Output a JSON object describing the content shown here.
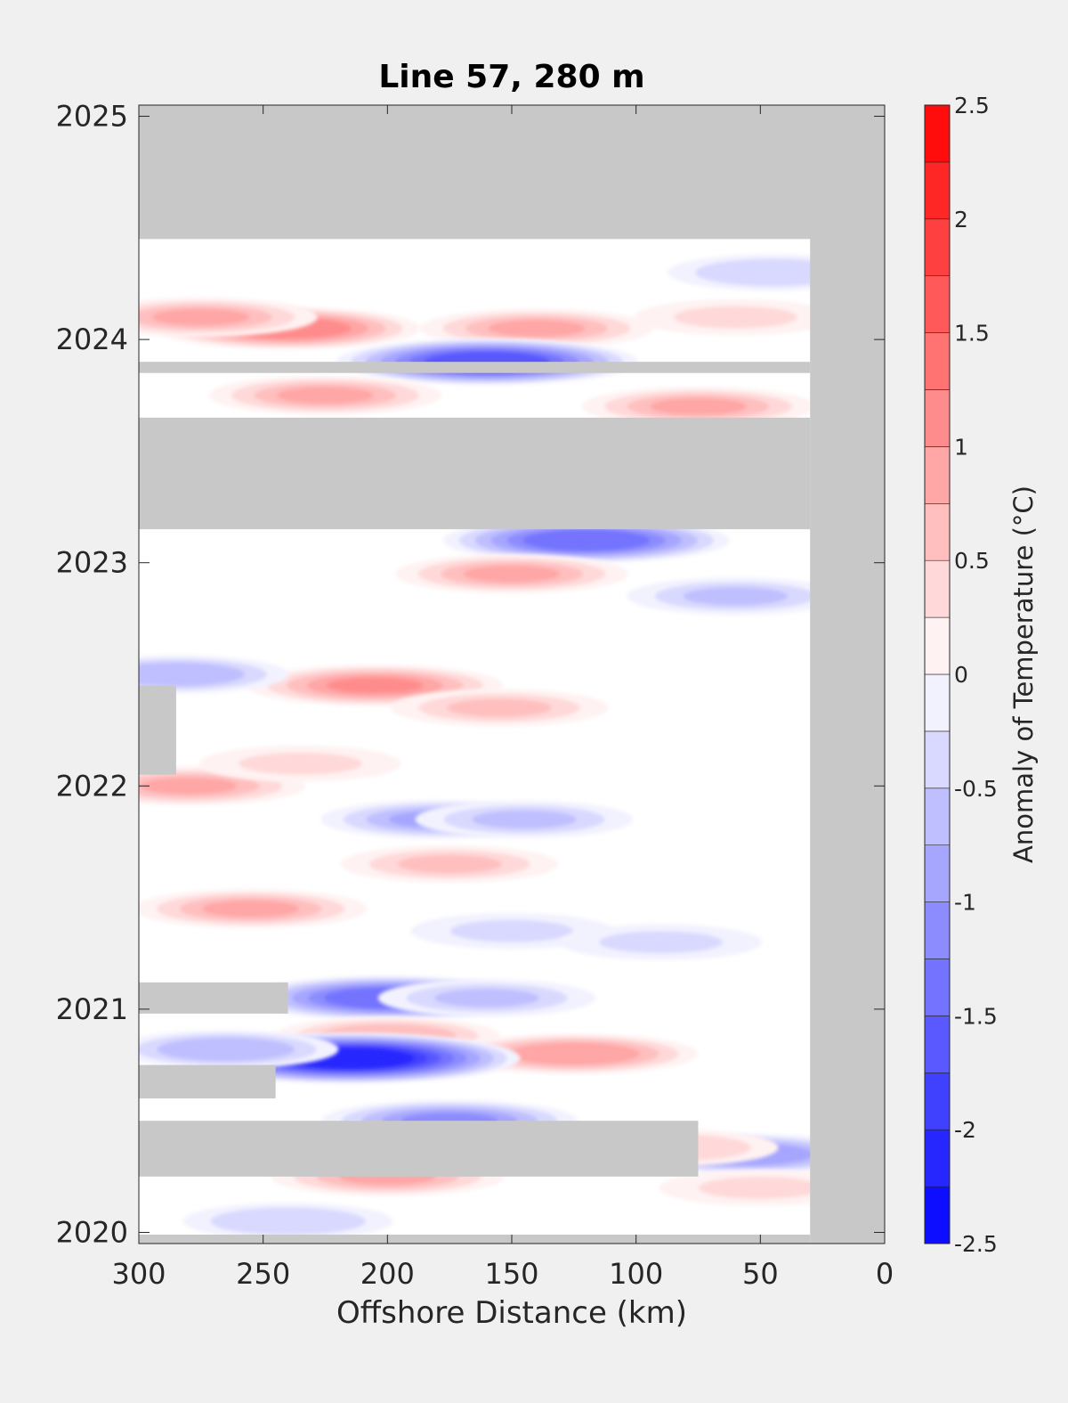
{
  "chart_data": {
    "type": "heatmap",
    "title": "Line 57, 280 m",
    "xlabel": "Offshore Distance (km)",
    "ylabel": "",
    "xlim": [
      300,
      0
    ],
    "ylim": [
      2019.95,
      2025.05
    ],
    "x_ticks": [
      300,
      250,
      200,
      150,
      100,
      50,
      0
    ],
    "y_ticks": [
      2020,
      2021,
      2022,
      2023,
      2024,
      2025
    ],
    "grid": false,
    "colorbar": {
      "label": "Anomaly of Temperature (°C)",
      "range": [
        -2.5,
        2.5
      ],
      "ticks": [
        "2.5",
        "2",
        "1.5",
        "1",
        "0.5",
        "0",
        "-0.5",
        "-1",
        "-1.5",
        "-2",
        "-2.5"
      ],
      "levels": [
        -2.5,
        -2.25,
        -2.0,
        -1.75,
        -1.5,
        -1.25,
        -1.0,
        -0.75,
        -0.5,
        -0.25,
        0,
        0.25,
        0.5,
        0.75,
        1.0,
        1.25,
        1.5,
        1.75,
        2.0,
        2.25,
        2.5
      ],
      "colormap": "blue-white-red",
      "color_low": "#0000ff",
      "color_mid": "#ffffff",
      "color_high": "#ff0000"
    },
    "no_data_color": "#c8c8c8",
    "no_data_regions": [
      {
        "x": [
          0,
          300
        ],
        "y": [
          2024.45,
          2025.05
        ]
      },
      {
        "x": [
          0,
          30
        ],
        "y": [
          2019.95,
          2025.05
        ]
      },
      {
        "x": [
          30,
          300
        ],
        "y": [
          2023.85,
          2023.9
        ]
      },
      {
        "x": [
          30,
          300
        ],
        "y": [
          2023.15,
          2023.65
        ]
      },
      {
        "x": [
          285,
          300
        ],
        "y": [
          2022.05,
          2022.45
        ]
      },
      {
        "x": [
          240,
          300
        ],
        "y": [
          2020.98,
          2021.12
        ]
      },
      {
        "x": [
          245,
          300
        ],
        "y": [
          2020.6,
          2020.75
        ]
      },
      {
        "x": [
          75,
          300
        ],
        "y": [
          2020.25,
          2020.5
        ]
      },
      {
        "x": [
          30,
          300
        ],
        "y": [
          2019.95,
          2019.99
        ]
      }
    ],
    "anomaly_features": [
      {
        "x": 240,
        "y": 2024.05,
        "value": 1.3
      },
      {
        "x": 275,
        "y": 2024.1,
        "value": 0.9
      },
      {
        "x": 140,
        "y": 2024.05,
        "value": 0.9
      },
      {
        "x": 60,
        "y": 2024.1,
        "value": 0.5
      },
      {
        "x": 160,
        "y": 2023.9,
        "value": -1.8
      },
      {
        "x": 45,
        "y": 2024.3,
        "value": -0.6
      },
      {
        "x": 225,
        "y": 2023.75,
        "value": 0.9
      },
      {
        "x": 75,
        "y": 2023.7,
        "value": 0.9
      },
      {
        "x": 120,
        "y": 2023.1,
        "value": -1.6
      },
      {
        "x": 150,
        "y": 2022.95,
        "value": 0.9
      },
      {
        "x": 60,
        "y": 2022.85,
        "value": -0.7
      },
      {
        "x": 205,
        "y": 2022.45,
        "value": 1.2
      },
      {
        "x": 155,
        "y": 2022.35,
        "value": 0.7
      },
      {
        "x": 285,
        "y": 2022.5,
        "value": -0.8
      },
      {
        "x": 280,
        "y": 2022.0,
        "value": 0.9
      },
      {
        "x": 235,
        "y": 2022.1,
        "value": 0.5
      },
      {
        "x": 180,
        "y": 2021.85,
        "value": -0.9
      },
      {
        "x": 145,
        "y": 2021.85,
        "value": -0.7
      },
      {
        "x": 175,
        "y": 2021.65,
        "value": 0.7
      },
      {
        "x": 255,
        "y": 2021.45,
        "value": 0.9
      },
      {
        "x": 150,
        "y": 2021.35,
        "value": -0.5
      },
      {
        "x": 90,
        "y": 2021.3,
        "value": -0.5
      },
      {
        "x": 200,
        "y": 2021.05,
        "value": -1.6
      },
      {
        "x": 160,
        "y": 2021.05,
        "value": -0.7
      },
      {
        "x": 200,
        "y": 2020.88,
        "value": 0.8
      },
      {
        "x": 125,
        "y": 2020.8,
        "value": 1.1
      },
      {
        "x": 215,
        "y": 2020.78,
        "value": -2.3
      },
      {
        "x": 265,
        "y": 2020.82,
        "value": -0.8
      },
      {
        "x": 175,
        "y": 2020.5,
        "value": -1.2
      },
      {
        "x": 55,
        "y": 2020.35,
        "value": -1.1
      },
      {
        "x": 85,
        "y": 2020.38,
        "value": 0.6
      },
      {
        "x": 200,
        "y": 2020.25,
        "value": 0.9
      },
      {
        "x": 50,
        "y": 2020.2,
        "value": 0.5
      },
      {
        "x": 240,
        "y": 2020.05,
        "value": -0.6
      }
    ]
  }
}
